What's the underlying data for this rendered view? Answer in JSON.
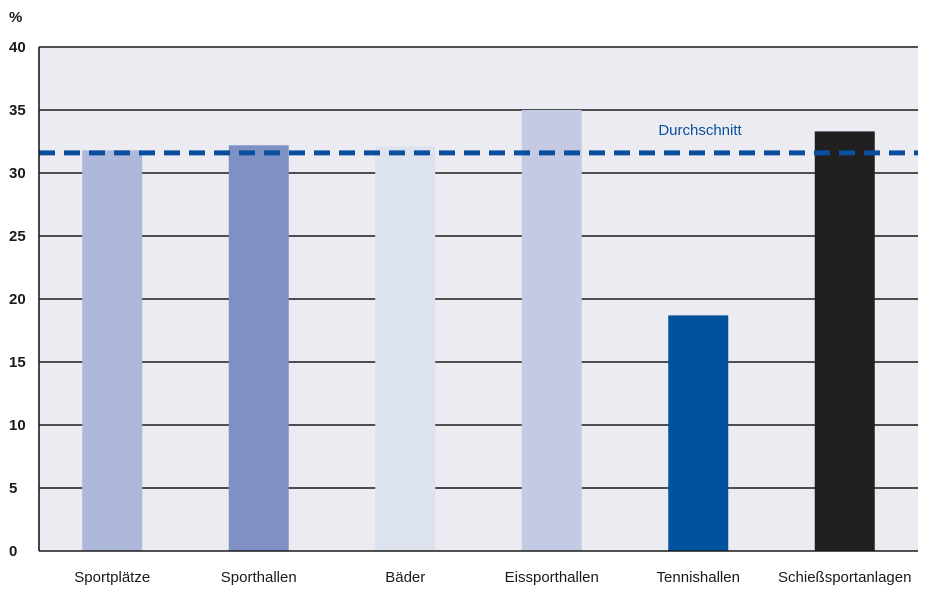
{
  "chart_data": {
    "type": "bar",
    "y_unit": "%",
    "ylim": [
      0,
      40
    ],
    "y_ticks": [
      0,
      5,
      10,
      15,
      20,
      25,
      30,
      35,
      40
    ],
    "grid": true,
    "background": "#ecebf1",
    "categories": [
      "Sportplätze",
      "Sporthallen",
      "Bäder",
      "Eissporthallen",
      "Tennishallen",
      "Schießsportanlagen"
    ],
    "values": [
      31.8,
      32.2,
      32.1,
      35.0,
      18.7,
      33.3
    ],
    "colors": [
      "#aeb8da",
      "#7f91c4",
      "#dde2ef",
      "#c4c9e4",
      "#00519e",
      "#221f20"
    ],
    "reference_line": {
      "label": "Durchschnitt",
      "value": 31.6,
      "color": "#0a4f9e",
      "style": "dashed"
    }
  }
}
